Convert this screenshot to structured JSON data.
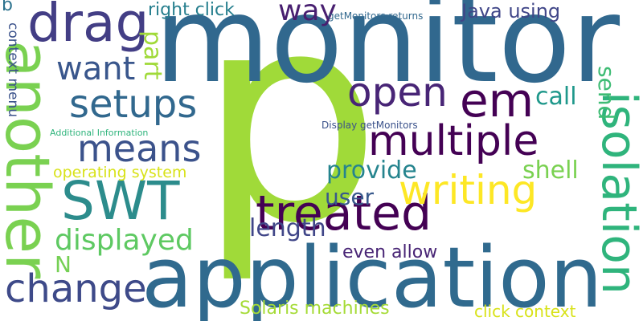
{
  "words": [
    {
      "id": "p",
      "text": "p",
      "color": "#a0da39"
    },
    {
      "id": "monitor",
      "text": "monitor",
      "color": "#31688e"
    },
    {
      "id": "application",
      "text": "application",
      "color": "#306a8e"
    },
    {
      "id": "another",
      "text": "another",
      "color": "#7ad151"
    },
    {
      "id": "isolation",
      "text": "isolation",
      "color": "#2fb47c"
    },
    {
      "id": "SWT",
      "text": "SWT",
      "color": "#2c8c8c"
    },
    {
      "id": "drag",
      "text": "drag",
      "color": "#433e85"
    },
    {
      "id": "treated",
      "text": "treated",
      "color": "#440154"
    },
    {
      "id": "multiple",
      "text": "multiple",
      "color": "#440154"
    },
    {
      "id": "writing",
      "text": "writing",
      "color": "#fde725"
    },
    {
      "id": "em",
      "text": "em",
      "color": "#440154"
    },
    {
      "id": "setups",
      "text": "setups",
      "color": "#31688e"
    },
    {
      "id": "means",
      "text": "means",
      "color": "#3b528b"
    },
    {
      "id": "open",
      "text": "open",
      "color": "#482576"
    },
    {
      "id": "change",
      "text": "change",
      "color": "#3e4a89"
    },
    {
      "id": "displayed",
      "text": "displayed",
      "color": "#5ec962"
    },
    {
      "id": "want",
      "text": "want",
      "color": "#39568c"
    },
    {
      "id": "way",
      "text": "way",
      "color": "#481f70"
    },
    {
      "id": "part",
      "text": "part",
      "color": "#a0da39"
    },
    {
      "id": "provide",
      "text": "provide",
      "color": "#25848e"
    },
    {
      "id": "shell",
      "text": "shell",
      "color": "#7ad151"
    },
    {
      "id": "user",
      "text": "user",
      "color": "#38598c"
    },
    {
      "id": "length",
      "text": "length",
      "color": "#404688"
    },
    {
      "id": "call",
      "text": "call",
      "color": "#1f988b"
    },
    {
      "id": "send",
      "text": "send",
      "color": "#3ebc74"
    },
    {
      "id": "Java_using",
      "text": "Java using",
      "color": "#404688"
    },
    {
      "id": "right_click",
      "text": "right click",
      "color": "#277f8e"
    },
    {
      "id": "N",
      "text": "N",
      "color": "#75d054"
    },
    {
      "id": "even_allow",
      "text": "even allow",
      "color": "#482475"
    },
    {
      "id": "Solaris_machines",
      "text": "Solaris machines",
      "color": "#a5db36"
    },
    {
      "id": "click_context",
      "text": "click context",
      "color": "#d8e219"
    },
    {
      "id": "operating_system",
      "text": "operating system",
      "color": "#d8e219"
    },
    {
      "id": "context_menu",
      "text": "context menu",
      "color": "#3b528b"
    },
    {
      "id": "getMonitors_returns",
      "text": "getMonitors returns",
      "color": "#31688e"
    },
    {
      "id": "Display_getMonitors",
      "text": "Display getMonitors",
      "color": "#3b528b"
    },
    {
      "id": "Additional_Information",
      "text": "Additional Information",
      "color": "#2fb47c"
    },
    {
      "id": "b_left",
      "text": "b",
      "color": "#2c728e"
    }
  ]
}
